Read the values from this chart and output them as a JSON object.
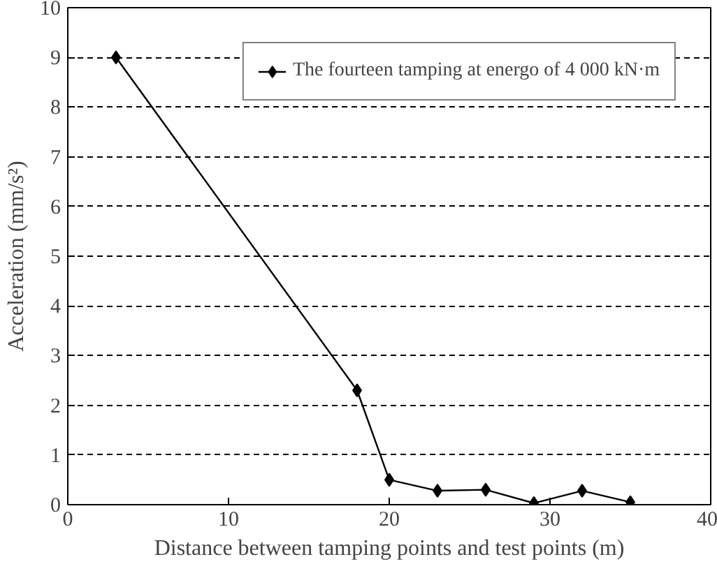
{
  "chart_data": {
    "type": "line",
    "xlabel": "Distance between tamping points and test points (m)",
    "ylabel": "Acceleration (mm/s²)",
    "x": [
      3,
      18,
      20,
      23,
      26,
      29,
      32,
      35
    ],
    "series": [
      {
        "name": "The fourteen tamping at energo of 4 000 kN·m",
        "color": "#000000",
        "values": [
          9,
          2.3,
          0.5,
          0.28,
          0.3,
          0.03,
          0.28,
          0.05
        ]
      }
    ],
    "xlim": [
      0,
      40
    ],
    "xticks": [
      0,
      10,
      20,
      30,
      40
    ],
    "ylim": [
      0,
      10
    ],
    "yticks": [
      0,
      1,
      2,
      3,
      4,
      5,
      6,
      7,
      8,
      9,
      10
    ],
    "grid": "y",
    "legend": "top right",
    "marker": "diamond",
    "line_style": "solid"
  }
}
